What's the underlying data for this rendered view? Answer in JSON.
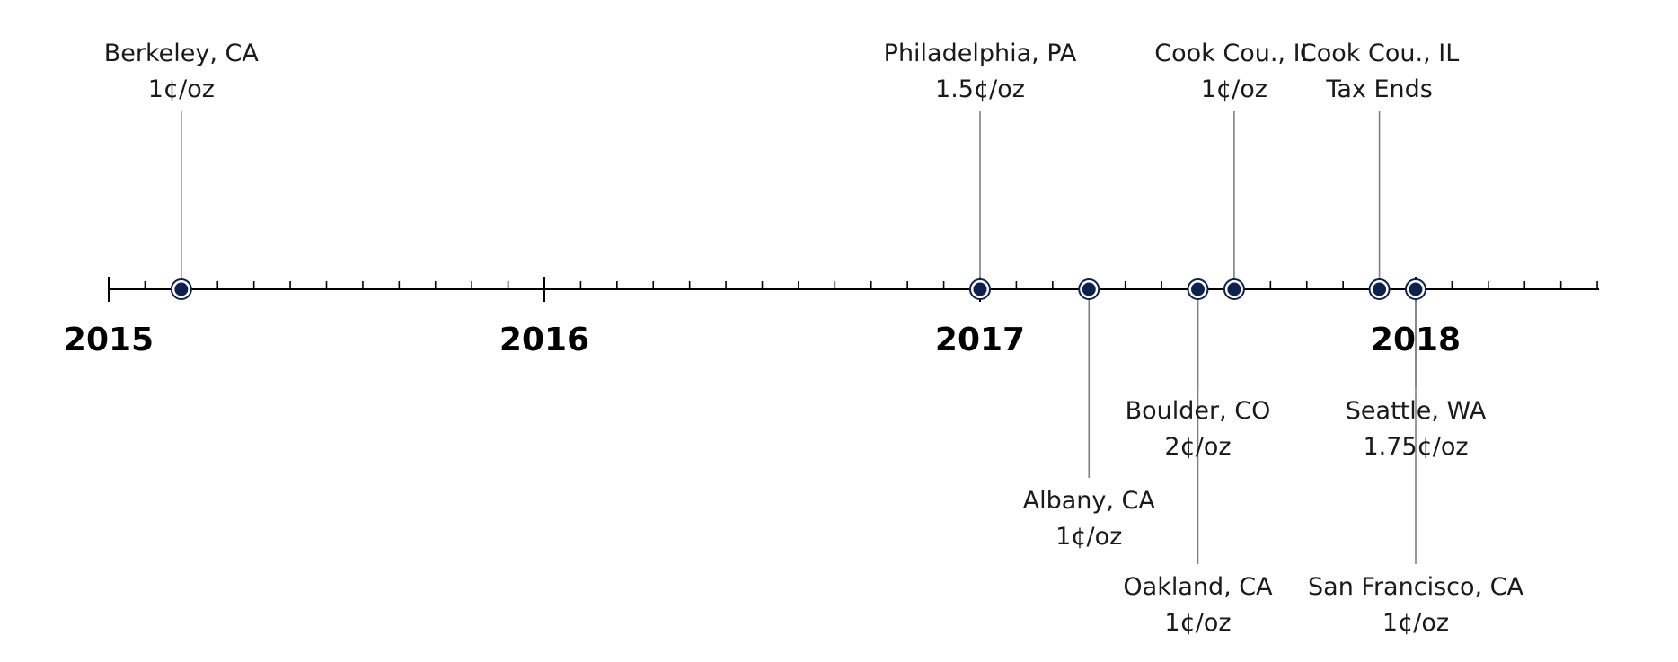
{
  "timeline": {
    "years": [
      "2015",
      "2016",
      "2017",
      "2018"
    ],
    "marker_color": "#0d2150",
    "events": [
      {
        "id": "berkeley",
        "date": "2015-03",
        "side": "above",
        "tier": 1,
        "lines": [
          "Berkeley, CA",
          "1¢/oz"
        ]
      },
      {
        "id": "philadelphia",
        "date": "2017-01",
        "side": "above",
        "tier": 1,
        "lines": [
          "Philadelphia, PA",
          "1.5¢/oz"
        ]
      },
      {
        "id": "albany",
        "date": "2017-04",
        "side": "below",
        "tier": 2,
        "lines": [
          "Albany, CA",
          "1¢/oz"
        ]
      },
      {
        "id": "boulder",
        "date": "2017-07",
        "side": "below",
        "tier": 1,
        "lines": [
          "Boulder, CO",
          "2¢/oz"
        ]
      },
      {
        "id": "oakland",
        "date": "2017-07",
        "side": "below",
        "tier": 3,
        "lines": [
          "Oakland, CA",
          "1¢/oz"
        ]
      },
      {
        "id": "cook-county-tax",
        "date": "2017-08",
        "side": "above",
        "tier": 1,
        "lines": [
          "Cook Cou., IL",
          "1¢/oz"
        ]
      },
      {
        "id": "cook-county-ends",
        "date": "2017-12",
        "side": "above",
        "tier": 1,
        "lines": [
          "Cook Cou., IL",
          "Tax Ends"
        ]
      },
      {
        "id": "seattle",
        "date": "2018-01",
        "side": "below",
        "tier": 1,
        "lines": [
          "Seattle, WA",
          "1.75¢/oz"
        ]
      },
      {
        "id": "san-francisco",
        "date": "2018-01",
        "side": "below",
        "tier": 3,
        "lines": [
          "San Francisco, CA",
          "1¢/oz"
        ]
      }
    ]
  }
}
